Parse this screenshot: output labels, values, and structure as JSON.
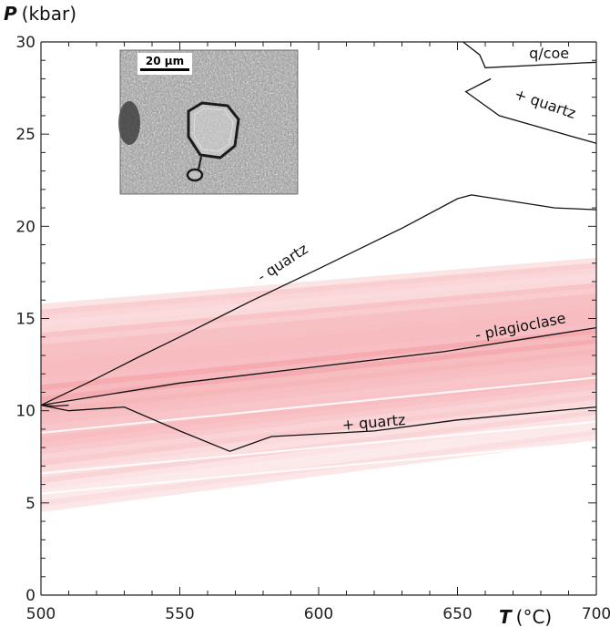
{
  "chart_data": {
    "type": "line",
    "title": "",
    "xlabel": {
      "symbol": "T",
      "unit": "(°C)"
    },
    "ylabel": {
      "symbol": "P",
      "unit": "(kbar)"
    },
    "xlim": [
      500,
      700
    ],
    "ylim": [
      0,
      30
    ],
    "x_ticks": [
      "500",
      "550",
      "600",
      "650",
      "700"
    ],
    "y_ticks": [
      "0",
      "5",
      "10",
      "15",
      "20",
      "25",
      "30"
    ],
    "grid": false,
    "reaction_lines": [
      {
        "label": "- quartz",
        "points": [
          [
            500,
            10.3
          ],
          [
            518,
            11.6
          ],
          [
            535,
            12.9
          ],
          [
            550,
            14.0
          ],
          [
            575,
            15.9
          ],
          [
            600,
            17.7
          ],
          [
            630,
            19.9
          ],
          [
            650,
            21.5
          ],
          [
            655,
            21.7
          ],
          [
            685,
            21.0
          ],
          [
            700,
            20.9
          ]
        ]
      },
      {
        "label": "- plagioclase",
        "points": [
          [
            500,
            10.3
          ],
          [
            550,
            11.5
          ],
          [
            600,
            12.4
          ],
          [
            645,
            13.2
          ],
          [
            700,
            14.5
          ]
        ]
      },
      {
        "label": "+ quartz",
        "points": [
          [
            500,
            10.3
          ],
          [
            510,
            10.0
          ],
          [
            530,
            10.2
          ],
          [
            550,
            8.9
          ],
          [
            568,
            7.8
          ],
          [
            583,
            8.6
          ],
          [
            620,
            8.9
          ],
          [
            650,
            9.5
          ],
          [
            700,
            10.2
          ]
        ]
      },
      {
        "label": "",
        "points": [
          [
            500,
            10.3
          ],
          [
            505,
            10.25
          ],
          [
            510,
            10.3
          ]
        ]
      },
      {
        "label": "q/coe",
        "points": [
          [
            652,
            30.0
          ],
          [
            658,
            29.3
          ],
          [
            660,
            28.6
          ],
          [
            700,
            28.9
          ]
        ]
      },
      {
        "label": "+ quartz",
        "points": [
          [
            662,
            28.0
          ],
          [
            653,
            27.3
          ],
          [
            665,
            26.0
          ],
          [
            700,
            24.5
          ]
        ]
      }
    ],
    "pt_band": {
      "description_hidden": true,
      "lower_start": [
        500,
        4.5
      ],
      "lower_end": [
        700,
        8.4
      ],
      "upper_start": [
        500,
        15.8
      ],
      "upper_end": [
        700,
        18.3
      ],
      "core_start": [
        500,
        11.0
      ],
      "core_end": [
        700,
        14.0
      ],
      "color": "#e8424d"
    },
    "inset": {
      "scale_bar_label": "20 μm"
    }
  },
  "colors": {
    "axis": "#222222",
    "line": "#111111",
    "band": "#e8424d"
  }
}
